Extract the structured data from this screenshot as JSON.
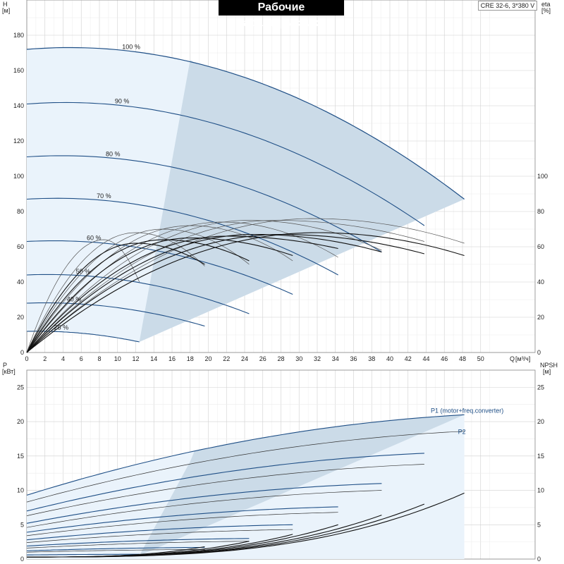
{
  "page": {
    "title": "Рабочие характеристики",
    "model": "CRE 32-6, 3*380 V"
  },
  "axes": {
    "head_label": "H",
    "head_unit": "[м]",
    "eta_label": "eta",
    "eta_unit": "[%]",
    "flow_label": "Q",
    "flow_unit": "[м³/ч]",
    "power_label": "P",
    "power_unit": "[кВт]",
    "npsh_label": "NPSH",
    "npsh_unit": "[м]"
  },
  "chart_data": [
    {
      "type": "line",
      "name": "head-eta",
      "x_ticks": [
        0,
        2,
        4,
        6,
        8,
        10,
        12,
        14,
        16,
        18,
        20,
        22,
        24,
        26,
        28,
        30,
        32,
        34,
        36,
        38,
        40,
        42,
        44,
        46,
        48,
        50
      ],
      "xlim": [
        0,
        56
      ],
      "ylim": [
        0,
        200
      ],
      "y_ticks": [
        0,
        20,
        40,
        60,
        80,
        100,
        120,
        140,
        160,
        180
      ],
      "y2_ticks": [
        0,
        20,
        40,
        60,
        80,
        100
      ],
      "grid": true,
      "speed_curves": [
        {
          "label": "100 %",
          "label_q": 11.5,
          "h0": 172,
          "qmax": 48.2,
          "hend": 87
        },
        {
          "label": "90 %",
          "label_q": 10.5,
          "h0": 141,
          "qmax": 43.8,
          "hend": 72
        },
        {
          "label": "80 %",
          "label_q": 9.5,
          "h0": 111,
          "qmax": 39.1,
          "hend": 57
        },
        {
          "label": "70 %",
          "label_q": 8.5,
          "h0": 87,
          "qmax": 34.3,
          "hend": 44
        },
        {
          "label": "60 %",
          "label_q": 7.4,
          "h0": 63,
          "qmax": 29.3,
          "hend": 33
        },
        {
          "label": "50 %",
          "label_q": 6.2,
          "h0": 44,
          "qmax": 24.5,
          "hend": 22
        },
        {
          "label": "40 %",
          "label_q": 5.2,
          "h0": 28,
          "qmax": 19.6,
          "hend": 15
        },
        {
          "label": "25 %",
          "label_q": 3.8,
          "h0": 12,
          "qmax": 12.4,
          "hend": 6
        }
      ],
      "eta_curves": [
        {
          "peak": 76,
          "qpeak": 31.5,
          "qend": 48.2,
          "endv": 62
        },
        {
          "peak": 75,
          "qpeak": 27.5,
          "qend": 43.8,
          "endv": 63
        },
        {
          "peak": 75,
          "qpeak": 24.5,
          "qend": 39.1,
          "endv": 58
        },
        {
          "peak": 74,
          "qpeak": 21.5,
          "qend": 34.3,
          "endv": 54
        },
        {
          "peak": 72,
          "qpeak": 18,
          "qend": 29.3,
          "endv": 52
        },
        {
          "peak": 70,
          "qpeak": 15,
          "qend": 24.5,
          "endv": 50
        },
        {
          "peak": 68,
          "qpeak": 12,
          "qend": 19.6,
          "endv": 49
        },
        {
          "peak": 64,
          "qpeak": 8.5,
          "qend": 12.4,
          "endv": 40
        },
        {
          "peak": 68,
          "qpeak": 32,
          "qend": 48.2,
          "endv": 55
        },
        {
          "peak": 67,
          "qpeak": 28,
          "qend": 43.8,
          "endv": 56
        },
        {
          "peak": 67,
          "qpeak": 25,
          "qend": 39.1,
          "endv": 57
        },
        {
          "peak": 66,
          "qpeak": 22,
          "qend": 34.3,
          "endv": 59
        },
        {
          "peak": 65,
          "qpeak": 18,
          "qend": 29.3,
          "endv": 55
        },
        {
          "peak": 64,
          "qpeak": 15,
          "qend": 24.5,
          "endv": 52
        },
        {
          "peak": 62,
          "qpeak": 12,
          "qend": 19.6,
          "endv": 50
        }
      ]
    },
    {
      "type": "line",
      "name": "power-npsh",
      "x_ticks": [
        0,
        2,
        4,
        6,
        8,
        10,
        12,
        14,
        16,
        18,
        20,
        22,
        24,
        26,
        28,
        30,
        32,
        34,
        36,
        38,
        40,
        42,
        44,
        46,
        48,
        50
      ],
      "xlim": [
        0,
        56
      ],
      "ylim": [
        0,
        27.5
      ],
      "y_ticks": [
        0,
        5,
        10,
        15,
        20,
        25
      ],
      "y2_ticks": [
        0,
        5,
        10,
        15,
        20,
        25
      ],
      "grid": true,
      "series_labels": {
        "p1": "P1 (motor+freq.converter)",
        "p2": "P2"
      },
      "p1_curves": [
        {
          "p0": 9.3,
          "qend": 48.2,
          "pend": 21.0
        },
        {
          "p0": 7.0,
          "qend": 43.8,
          "pend": 15.4
        },
        {
          "p0": 5.2,
          "qend": 39.1,
          "pend": 11.0
        },
        {
          "p0": 3.9,
          "qend": 34.3,
          "pend": 7.6
        },
        {
          "p0": 2.8,
          "qend": 29.3,
          "pend": 5.0
        },
        {
          "p0": 1.9,
          "qend": 24.5,
          "pend": 3.0
        },
        {
          "p0": 1.2,
          "qend": 19.6,
          "pend": 1.7
        },
        {
          "p0": 0.6,
          "qend": 12.4,
          "pend": 0.7
        }
      ],
      "p2_curves": [
        {
          "p0": 8.3,
          "qend": 48.2,
          "pend": 18.6
        },
        {
          "p0": 6.3,
          "qend": 43.8,
          "pend": 13.8
        },
        {
          "p0": 4.6,
          "qend": 39.1,
          "pend": 10.0
        },
        {
          "p0": 3.4,
          "qend": 34.3,
          "pend": 6.8
        },
        {
          "p0": 2.4,
          "qend": 29.3,
          "pend": 4.3
        },
        {
          "p0": 1.6,
          "qend": 24.5,
          "pend": 2.6
        },
        {
          "p0": 1.0,
          "qend": 19.6,
          "pend": 1.4
        }
      ],
      "npsh_curves": [
        {
          "qend": 48.2,
          "nend": 9.6
        },
        {
          "qend": 43.8,
          "nend": 8.0
        },
        {
          "qend": 39.1,
          "nend": 6.4
        },
        {
          "qend": 34.3,
          "nend": 5.0
        },
        {
          "qend": 29.3,
          "nend": 3.6
        },
        {
          "qend": 24.5,
          "nend": 2.6
        },
        {
          "qend": 19.6,
          "nend": 1.8
        }
      ]
    }
  ]
}
